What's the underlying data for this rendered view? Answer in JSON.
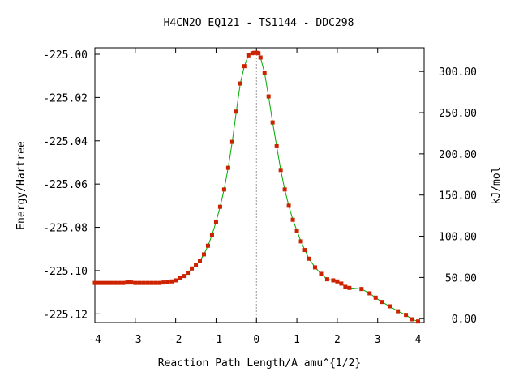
{
  "chart_data": {
    "type": "line",
    "title": "H4CN2O   EQ121 - TS1144 - DDC298",
    "xlabel": "Reaction Path Length/A amu^{1/2}",
    "ylabel": "Energy/Hartree",
    "y2label": "kJ/mol",
    "xlim": [
      -4.0,
      4.15
    ],
    "ylim": [
      -225.124,
      -224.997
    ],
    "y2lim": [
      -4.7,
      328.7
    ],
    "x_ticks": [
      "-4",
      "-3",
      "-2",
      "-1",
      "0",
      "1",
      "2",
      "3",
      "4"
    ],
    "y_ticks": [
      "-225.00",
      "-225.02",
      "-225.04",
      "-225.06",
      "-225.08",
      "-225.10",
      "-225.12"
    ],
    "y2_ticks": [
      "0.00",
      "50.00",
      "100.00",
      "150.00",
      "200.00",
      "250.00",
      "300.00"
    ],
    "grid": false,
    "ts_line_x": 0,
    "line_color": "#00aa00",
    "marker_color": "#cc2200",
    "series": [
      {
        "x": [
          -4.0,
          -3.9,
          -3.8,
          -3.7,
          -3.6,
          -3.5,
          -3.4,
          -3.3,
          -3.2,
          -3.15,
          -3.1,
          -3.0,
          -2.9,
          -2.8,
          -2.7,
          -2.6,
          -2.5,
          -2.4,
          -2.3,
          -2.2,
          -2.1,
          -2.0,
          -1.9,
          -1.8,
          -1.7,
          -1.6,
          -1.5,
          -1.4,
          -1.3,
          -1.2,
          -1.1,
          -1.0,
          -0.9,
          -0.8,
          -0.7,
          -0.6,
          -0.5,
          -0.4,
          -0.3,
          -0.2,
          -0.1,
          -0.05,
          0.0,
          0.05,
          0.1,
          0.2,
          0.3,
          0.4,
          0.5,
          0.6,
          0.7,
          0.8,
          0.9,
          1.0,
          1.1,
          1.2,
          1.3,
          1.45,
          1.6,
          1.75,
          1.9,
          2.0,
          2.1,
          2.2,
          2.3,
          2.6,
          2.8,
          2.95,
          3.1,
          3.3,
          3.5,
          3.7,
          3.85,
          4.0
        ],
        "y": [
          -225.1057,
          -225.1057,
          -225.1057,
          -225.1057,
          -225.1057,
          -225.1057,
          -225.1057,
          -225.1057,
          -225.1055,
          -225.1052,
          -225.1055,
          -225.1057,
          -225.1057,
          -225.1057,
          -225.1057,
          -225.1057,
          -225.1057,
          -225.1057,
          -225.1055,
          -225.1053,
          -225.105,
          -225.1045,
          -225.1035,
          -225.1025,
          -225.101,
          -225.099,
          -225.0975,
          -225.0955,
          -225.0925,
          -225.0885,
          -225.0835,
          -225.0775,
          -225.0705,
          -225.0625,
          -225.0525,
          -225.0405,
          -225.0265,
          -225.0135,
          -225.0055,
          -225.0005,
          -224.9995,
          -224.9993,
          -224.9993,
          -224.9995,
          -225.0015,
          -225.0085,
          -225.0195,
          -225.0315,
          -225.0425,
          -225.0535,
          -225.0625,
          -225.07,
          -225.0765,
          -225.0815,
          -225.0865,
          -225.0905,
          -225.0945,
          -225.0985,
          -225.1015,
          -225.104,
          -225.1045,
          -225.105,
          -225.106,
          -225.1075,
          -225.108,
          -225.1085,
          -225.1105,
          -225.1125,
          -225.1145,
          -225.1165,
          -225.1188,
          -225.1205,
          -225.1225,
          -225.1235
        ]
      }
    ]
  }
}
